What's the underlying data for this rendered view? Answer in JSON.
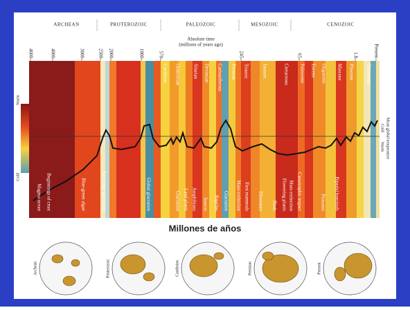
{
  "eras": [
    "ARCHEAN",
    "PROTEROZOIC",
    "PALEOZOIC",
    "MESOZOIC",
    "CENOZOIC"
  ],
  "time_axis": {
    "title": "Absolute time",
    "subtitle": "(millions of years ago)",
    "ticks": [
      "4600",
      "4000",
      "3000",
      "2500",
      "2000",
      "1000",
      "570",
      "245",
      "65",
      "1.8",
      "Present"
    ]
  },
  "periods": [
    "Cambrian",
    "Ordovician",
    "Silurian",
    "Devonian",
    "Carboniferous",
    "Permian",
    "Triassic",
    "Jurassic",
    "Cretaceous",
    "Paleocene",
    "Eocene",
    "Oligocene",
    "Miocene",
    "Pliocene",
    "Quaternary"
  ],
  "events": [
    "Magma ocean",
    "Beginnings of crust",
    "Blue-green algae",
    "First large glaciation",
    "Global glaciation",
    "Glaciation",
    "Land plants",
    "Amphibians",
    "Insects",
    "Reptiles",
    "Glaciation",
    "Mass extinction",
    "First mammals",
    "Dinosaurs",
    "Birds",
    "Flowering plants",
    "Mass extinction",
    "Catastrophic impact",
    "Primates",
    "Bipedal hominids"
  ],
  "color_scale": {
    "top": "Warm",
    "bottom": "Cold"
  },
  "right_axis": {
    "title": "Mean global temperature",
    "top": "Cold",
    "bottom": "Warm"
  },
  "caption": "Millones de años",
  "maps": [
    "Archean",
    "Proterozoic",
    "Cambrian",
    "Permian",
    "Present"
  ]
}
